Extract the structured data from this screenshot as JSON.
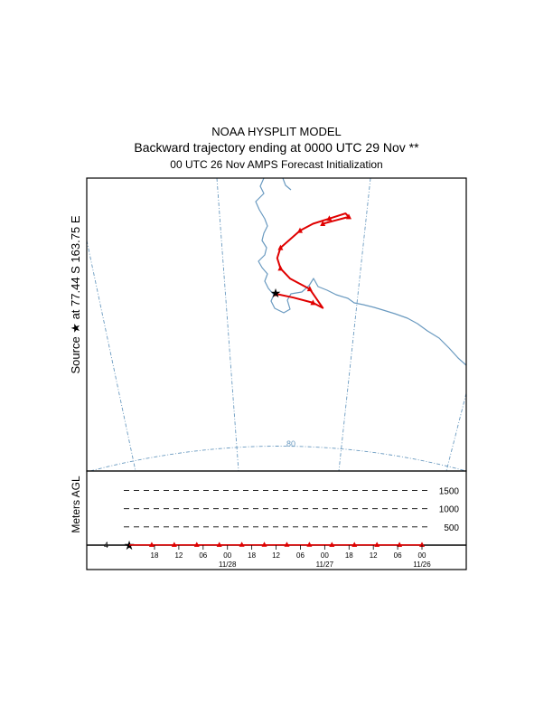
{
  "header": {
    "title": "NOAA HYSPLIT MODEL",
    "subtitle": "Backward trajectory ending at 0000 UTC 29 Nov **",
    "subtitle2": "00 UTC 26 Nov    AMPS  Forecast Initialization"
  },
  "map": {
    "source_label": "Source ★ at  77.44 S  163.75 E",
    "latitude_circle_label": "80",
    "colors": {
      "coast": "#6a9ac0",
      "trajectory": "#e00000",
      "frame": "#000000"
    }
  },
  "chart_data": [
    {
      "type": "line",
      "title": "NOAA HYSPLIT MODEL",
      "subtitle": "Backward trajectory ending at 0000 UTC 29 Nov **",
      "series": [
        {
          "values": [
            [
              163.75,
              -77.44
            ],
            [
              164.3,
              -77.55
            ],
            [
              164.9,
              -77.7
            ],
            [
              165.2,
              -77.85
            ],
            [
              164.8,
              -77.3
            ],
            [
              164.2,
              -77.0
            ],
            [
              163.9,
              -76.7
            ],
            [
              163.8,
              -76.4
            ],
            [
              163.9,
              -76.1
            ],
            [
              164.2,
              -75.85
            ],
            [
              164.5,
              -75.6
            ],
            [
              164.9,
              -75.4
            ],
            [
              165.4,
              -75.25
            ],
            [
              165.9,
              -75.1
            ],
            [
              166.0,
              -75.2
            ],
            [
              165.6,
              -75.3
            ],
            [
              165.2,
              -75.4
            ]
          ]
        }
      ],
      "source": {
        "lat": -77.44,
        "lon": 163.75
      },
      "grid": true
    },
    {
      "type": "line",
      "ylabel": "Meters AGL",
      "y_ticks": [
        1500,
        1000,
        500
      ],
      "x_tick_labels": [
        "18",
        "12",
        "06",
        "00",
        "18",
        "12",
        "06",
        "00",
        "18",
        "12",
        "06",
        "00"
      ],
      "date_labels": [
        "11/28",
        "11/27",
        "11/26"
      ],
      "start_level_label": "4",
      "series": [
        {
          "values": [
            4,
            4,
            4,
            4,
            4,
            5,
            6,
            6,
            5,
            4,
            4,
            4,
            4,
            4
          ]
        }
      ]
    }
  ]
}
